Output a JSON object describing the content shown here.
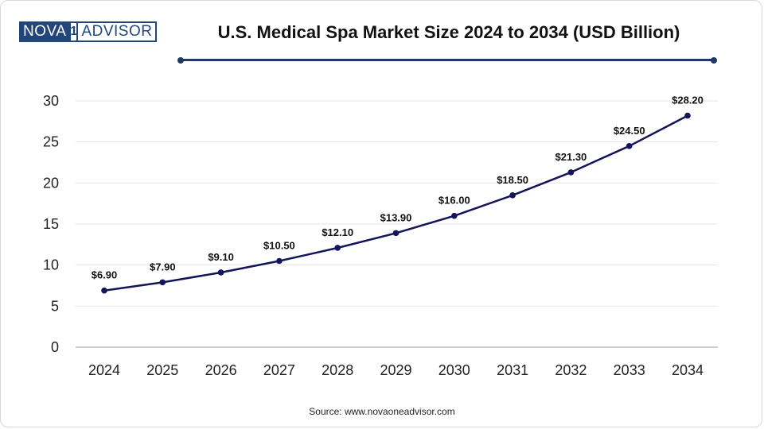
{
  "logo": {
    "part1": "NOVA",
    "mark": "1",
    "part2": "ADVISOR"
  },
  "source": "Source: www.novaoneadvisor.com",
  "colors": {
    "line": "#14145a",
    "accent": "#1f3864",
    "grid": "#e6e6e6",
    "axis": "#bfbfbf"
  },
  "chart_data": {
    "type": "line",
    "title": "U.S. Medical Spa Market Size 2024 to 2034 (USD Billion)",
    "xlabel": "",
    "ylabel": "",
    "categories": [
      "2024",
      "2025",
      "2026",
      "2027",
      "2028",
      "2029",
      "2030",
      "2031",
      "2032",
      "2033",
      "2034"
    ],
    "series": [
      {
        "name": "U.S. Medical Spa Market Size",
        "values": [
          6.9,
          7.9,
          9.1,
          10.5,
          12.1,
          13.9,
          16.0,
          18.5,
          21.3,
          24.5,
          28.2
        ],
        "labels": [
          "$6.90",
          "$7.90",
          "$9.10",
          "$10.50",
          "$12.10",
          "$13.90",
          "$16.00",
          "$18.50",
          "$21.30",
          "$24.50",
          "$28.20"
        ]
      }
    ],
    "yticks": [
      0,
      5,
      10,
      15,
      20,
      25,
      30
    ],
    "ylim": [
      0,
      30
    ],
    "grid": true,
    "legend": "none"
  }
}
